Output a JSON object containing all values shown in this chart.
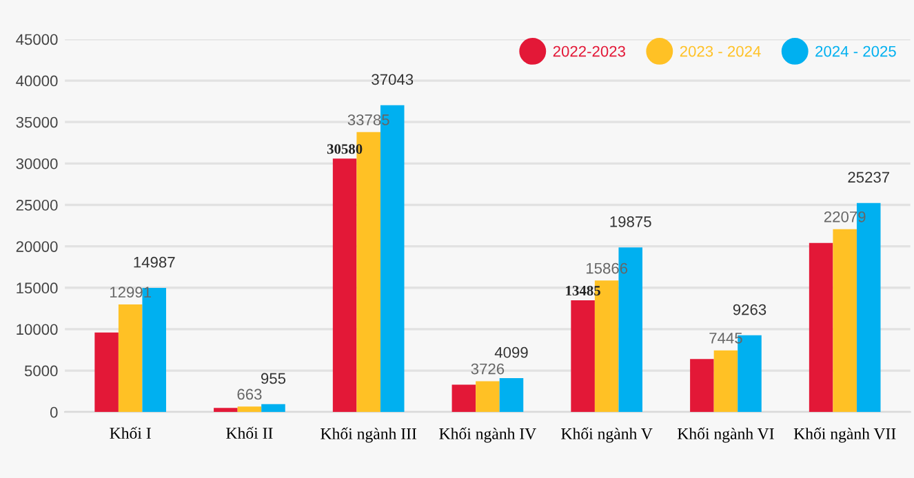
{
  "chart_data": {
    "type": "bar",
    "categories": [
      "Khối I",
      "Khối II",
      "Khối ngành III",
      "Khối ngành IV",
      "Khối ngành V",
      "Khối ngành VI",
      "Khối ngành VII"
    ],
    "series": [
      {
        "name": "2022-2023",
        "color": "#e31837",
        "values": [
          9600,
          500,
          30580,
          3300,
          13485,
          6400,
          20400
        ],
        "value_labels": [
          null,
          null,
          "30580",
          null,
          "13485",
          null,
          null
        ]
      },
      {
        "name": "2023 - 2024",
        "color": "#ffc125",
        "values": [
          12991,
          663,
          33785,
          3726,
          15866,
          7445,
          22079
        ],
        "value_labels": [
          "12991",
          "663",
          "33785",
          "3726",
          "15866",
          "7445",
          "22079"
        ]
      },
      {
        "name": "2024 - 2025",
        "color": "#00b0f0",
        "values": [
          14987,
          955,
          37043,
          4099,
          19875,
          9263,
          25237
        ],
        "value_labels": [
          "14987",
          "955",
          "37043",
          "4099",
          "19875",
          "9263",
          "25237"
        ]
      }
    ],
    "ylim": [
      0,
      45000
    ],
    "yticks": [
      0,
      5000,
      10000,
      15000,
      20000,
      25000,
      30000,
      35000,
      40000,
      45000
    ],
    "grid": "y",
    "legend": "top right"
  }
}
